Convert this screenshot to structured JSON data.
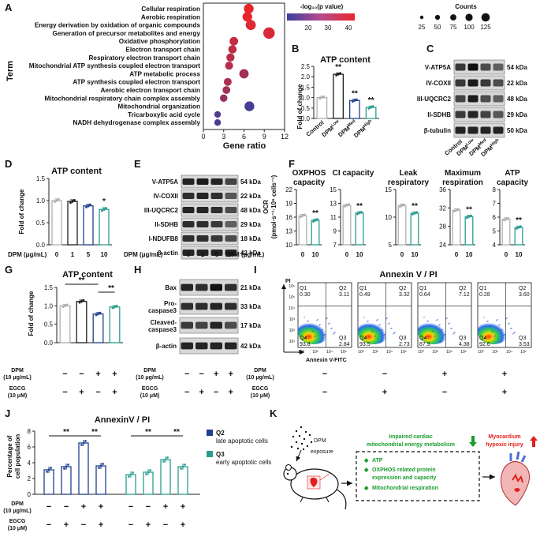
{
  "panels": {
    "A": {
      "label": "A",
      "ylabel": "Term",
      "xlabel": "Gene ratio",
      "legend": {
        "color_title": "-log₁₀(p value)",
        "color_ticks": [
          "20",
          "30",
          "40"
        ],
        "size_title": "Counts",
        "size_ticks": [
          "25",
          "50",
          "75",
          "100",
          "125"
        ],
        "color_low": "#3a3f9e",
        "color_high": "#e8262a"
      }
    },
    "B": {
      "label": "B",
      "title": "ATP content",
      "ylabel": "Fold of change",
      "sig": [
        "**",
        "**",
        "**"
      ]
    },
    "C": {
      "label": "C",
      "bands": [
        "V-ATP5A",
        "IV-COXII",
        "III-UQCRC2",
        "II-SDHB",
        "β-tubulin"
      ],
      "kda": [
        "54 kDa",
        "22 kDa",
        "48 kDa",
        "29 kDa",
        "50 kDa"
      ],
      "lanes": [
        "Control",
        "DPMLow",
        "DPMMed",
        "DPMHigh"
      ]
    },
    "D": {
      "label": "D",
      "title": "ATP content",
      "ylabel": "Fold of change",
      "xrow_label": "DPM (μg/mL)",
      "sig": "*"
    },
    "E": {
      "label": "E",
      "bands": [
        "V-ATP5A",
        "IV-COXII",
        "III-UQCRC2",
        "II-SDHB",
        "I-NDUFB8",
        "β-actin"
      ],
      "kda": [
        "54 kDa",
        "22 kDa",
        "48 kDa",
        "29 kDa",
        "18 kDa",
        "42 kDa"
      ],
      "xrow_label": "DPM (μg/mL)",
      "lanes": [
        "0",
        "1",
        "5",
        "10"
      ]
    },
    "F": {
      "label": "F",
      "ylabel": "OCR",
      "ylabel2": "(pmol·s⁻¹·10⁶ cells⁻¹)",
      "xrow_label": "DPM (μg/mL)",
      "sig": "**"
    },
    "G": {
      "label": "G",
      "title": "ATP content",
      "ylabel": "Fold of change",
      "row1": "DPM",
      "row1b": "(10 μg/mL)",
      "row2": "EGCG",
      "row2b": "(10 μM)",
      "sig": [
        "**",
        "**"
      ]
    },
    "H": {
      "label": "H",
      "bands": [
        "Bax",
        "Pro-",
        "caspase3",
        "Cleaved-",
        "caspase3",
        "β-actin"
      ],
      "kda": [
        "21 kDa",
        "33 kDa",
        "17 kDa",
        "42 kDa"
      ],
      "row1": "DPM",
      "row1b": "(10 μg/mL)",
      "row2": "EGCG",
      "row2b": "(10 μM)"
    },
    "I": {
      "label": "I",
      "title": "Annexin V / PI",
      "yaxis": "PI",
      "xaxis": "Annexin V-FITC",
      "row1": "DPM",
      "row1b": "(10 μg/mL)",
      "row2": "EGCG",
      "row2b": "(10 μM)",
      "plots": [
        {
          "q1": "Q1",
          "q1v": "0.30",
          "q2": "Q2",
          "q2v": "3.11",
          "q3": "Q3",
          "q3v": "2.84",
          "q4": "Q4",
          "q4v": "93.8",
          "dpm": "−",
          "egcg": "−"
        },
        {
          "q1": "Q1",
          "q1v": "0.49",
          "q2": "Q2",
          "q2v": "3.32",
          "q3": "Q3",
          "q3v": "2.73",
          "q4": "Q4",
          "q4v": "93.5",
          "dpm": "−",
          "egcg": "+"
        },
        {
          "q1": "Q1",
          "q1v": "0.64",
          "q2": "Q2",
          "q2v": "7.12",
          "q3": "Q3",
          "q3v": "4.38",
          "q4": "Q4",
          "q4v": "87.9",
          "dpm": "+",
          "egcg": "−"
        },
        {
          "q1": "Q1",
          "q1v": "0.28",
          "q2": "Q2",
          "q2v": "3.60",
          "q3": "Q3",
          "q3v": "3.53",
          "q4": "Q4",
          "q4v": "92.6",
          "dpm": "+",
          "egcg": "+"
        }
      ]
    },
    "J": {
      "label": "J",
      "title": "AnnexinV / PI",
      "ylabel": "Percentage of",
      "ylabel2": "cell population",
      "legend": [
        {
          "name": "Q2",
          "desc": "late apoptotic cells",
          "color": "#1f3f8f"
        },
        {
          "name": "Q3",
          "desc": "early apoptotic cells",
          "color": "#2a9d8f"
        }
      ],
      "row1": "DPM",
      "row1b": "(10 μg/mL)",
      "row2": "EGCG",
      "row2b": "(10 μM)",
      "sig": [
        "**",
        "**",
        "**",
        "**"
      ]
    },
    "K": {
      "label": "K",
      "exposure": "DPM",
      "exposure2": "exposure",
      "impaired": "Impaired cardiac",
      "impaired2": "mitochondrial energy metabolism",
      "injury": "Myocardium",
      "injury2": "hypoxic injury",
      "items": [
        "ATP",
        "OXPHOS related protein",
        "expression and capacity",
        "Mitochondrial respiration"
      ],
      "green": "#1a9c2e",
      "red": "#e0201c"
    }
  },
  "chart_data": [
    {
      "panel": "A",
      "type": "scatter",
      "xlabel": "Gene ratio",
      "ylabel": "Term",
      "xlim": [
        0,
        12
      ],
      "xticks": [
        0,
        3,
        6,
        9,
        12
      ],
      "categories": [
        "Cellular respiration",
        "Aerobic respiration",
        "Energy derivation by oxidation of organic compounds",
        "Generation of precursor metabolites and energy",
        "Oxidative phosphorylation",
        "Electron transport chain",
        "Respiratory electron transport chain",
        "Mitochondrial ATP synthesis coupled electron transport",
        "ATP metabolic process",
        "ATP synthesis coupled electron transport",
        "Aerobic electron transport chain",
        "Mitochondrial respiratory chain complex assembly",
        "Mitochondrial organization",
        "Tricarboxylic acid cycle",
        "NADH dehydrogenase complex assembly"
      ],
      "x": [
        6.7,
        6.5,
        7.0,
        9.7,
        4.5,
        4.3,
        4.0,
        3.8,
        6.0,
        3.6,
        3.4,
        3.0,
        6.8,
        2.1,
        2.1
      ],
      "counts": [
        70,
        68,
        75,
        105,
        48,
        45,
        42,
        40,
        62,
        38,
        36,
        33,
        70,
        22,
        22
      ],
      "neglog10p": [
        40,
        40,
        38,
        37,
        34,
        33,
        32,
        31,
        28,
        30,
        28,
        26,
        12,
        14,
        13
      ]
    },
    {
      "panel": "B",
      "type": "bar",
      "title": "ATP content",
      "ylabel": "Fold of change",
      "categories": [
        "Control",
        "DPMLow",
        "DPMMed",
        "DPMHigh"
      ],
      "values": [
        1.0,
        2.12,
        0.86,
        0.53
      ],
      "ylim": [
        0.0,
        2.5
      ],
      "yticks": [
        0.0,
        0.5,
        1.0,
        1.5,
        2.0,
        2.5
      ],
      "colors": [
        "#b0b0b0",
        "#1c1c1c",
        "#1f3f8f",
        "#2a9d8f"
      ]
    },
    {
      "panel": "D",
      "type": "bar",
      "title": "ATP content",
      "ylabel": "Fold of change",
      "categories": [
        "0",
        "1",
        "5",
        "10"
      ],
      "values": [
        1.0,
        0.98,
        0.88,
        0.8
      ],
      "ylim": [
        0.0,
        1.5
      ],
      "yticks": [
        0.0,
        0.5,
        1.0,
        1.5
      ],
      "colors": [
        "#b0b0b0",
        "#1c1c1c",
        "#1f3f8f",
        "#2a9d8f"
      ]
    },
    {
      "panel": "F",
      "type": "bar",
      "subplots": [
        {
          "title": "OXPHOS",
          "title2": "capacity",
          "categories": [
            "0",
            "10"
          ],
          "values": [
            16.3,
            15.3
          ],
          "ylim": [
            10,
            22
          ],
          "yticks": [
            10,
            13,
            16,
            19,
            22
          ]
        },
        {
          "title": "CI capacity",
          "title2": "",
          "categories": [
            "0",
            "10"
          ],
          "values": [
            12.7,
            11.6
          ],
          "ylim": [
            7,
            15
          ],
          "yticks": [
            7,
            9,
            11,
            13,
            15
          ]
        },
        {
          "title": "Leak",
          "title2": "respiratory",
          "categories": [
            "0",
            "10"
          ],
          "values": [
            12.1,
            10.7
          ],
          "ylim": [
            5,
            15
          ],
          "yticks": [
            5,
            10,
            15
          ]
        },
        {
          "title": "Maximum",
          "title2": "respiration",
          "categories": [
            "0",
            "10"
          ],
          "values": [
            31.5,
            30.1
          ],
          "ylim": [
            24,
            36
          ],
          "yticks": [
            24,
            28,
            32,
            36
          ]
        },
        {
          "title": "ATP",
          "title2": "capacity",
          "categories": [
            "0",
            "10"
          ],
          "values": [
            5.85,
            5.25
          ],
          "ylim": [
            4,
            8
          ],
          "yticks": [
            4,
            5,
            6,
            7,
            8
          ]
        }
      ],
      "colors": [
        "#b0b0b0",
        "#2a9d8f"
      ]
    },
    {
      "panel": "G",
      "type": "bar",
      "title": "ATP content",
      "ylabel": "Fold of change",
      "categories": [
        "−/−",
        "−/+",
        "+/−",
        "+/+"
      ],
      "values": [
        1.0,
        1.12,
        0.78,
        0.97
      ],
      "ylim": [
        0.0,
        1.5
      ],
      "yticks": [
        0.0,
        0.5,
        1.0,
        1.5
      ],
      "colors": [
        "#b0b0b0",
        "#1c1c1c",
        "#1f3f8f",
        "#2a9d8f"
      ]
    },
    {
      "panel": "J",
      "type": "bar",
      "title": "AnnexinV / PI",
      "categories": [
        "−/−",
        "−/+",
        "+/−",
        "+/+"
      ],
      "series": [
        {
          "name": "Q2",
          "values": [
            3.1,
            3.5,
            6.5,
            3.6
          ]
        },
        {
          "name": "Q3",
          "values": [
            2.5,
            2.8,
            4.4,
            3.5
          ]
        }
      ],
      "ylim": [
        0,
        8
      ],
      "yticks": [
        0,
        2,
        4,
        6,
        8
      ]
    }
  ]
}
